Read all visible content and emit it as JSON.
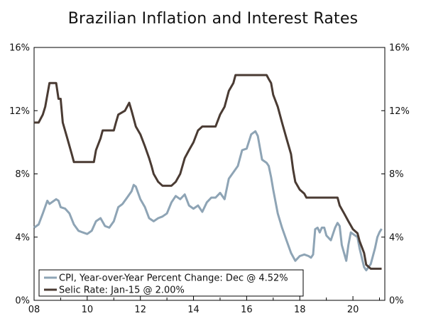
{
  "chart_data": {
    "type": "line",
    "title": "Brazilian Inflation and Interest Rates",
    "xlabel": "",
    "ylabel": "",
    "xlim": [
      2008,
      2021.2
    ],
    "ylim": [
      0,
      16
    ],
    "x_ticks": [
      8,
      10,
      12,
      14,
      16,
      18,
      20
    ],
    "x_tick_labels": [
      "08",
      "10",
      "12",
      "14",
      "16",
      "18",
      "20"
    ],
    "y_ticks": [
      0,
      4,
      8,
      12,
      16
    ],
    "y_tick_labels": [
      "0%",
      "4%",
      "8%",
      "12%",
      "16%"
    ],
    "grid": false,
    "legend_position": "bottom-left",
    "series": [
      {
        "name": "CPI, Year-over-Year Percent Change: Dec @ 4.52%",
        "color": "#8ea4b5",
        "points": [
          [
            2008.0,
            4.6
          ],
          [
            2008.17,
            4.8
          ],
          [
            2008.33,
            5.5
          ],
          [
            2008.5,
            6.3
          ],
          [
            2008.58,
            6.1
          ],
          [
            2008.75,
            6.3
          ],
          [
            2008.83,
            6.4
          ],
          [
            2008.92,
            6.3
          ],
          [
            2009.0,
            5.9
          ],
          [
            2009.17,
            5.8
          ],
          [
            2009.33,
            5.5
          ],
          [
            2009.5,
            4.8
          ],
          [
            2009.67,
            4.4
          ],
          [
            2009.83,
            4.3
          ],
          [
            2010.0,
            4.2
          ],
          [
            2010.17,
            4.4
          ],
          [
            2010.33,
            5.0
          ],
          [
            2010.5,
            5.2
          ],
          [
            2010.67,
            4.7
          ],
          [
            2010.83,
            4.6
          ],
          [
            2011.0,
            5.0
          ],
          [
            2011.17,
            5.9
          ],
          [
            2011.33,
            6.1
          ],
          [
            2011.5,
            6.5
          ],
          [
            2011.67,
            6.9
          ],
          [
            2011.75,
            7.3
          ],
          [
            2011.83,
            7.2
          ],
          [
            2012.0,
            6.4
          ],
          [
            2012.17,
            5.9
          ],
          [
            2012.33,
            5.2
          ],
          [
            2012.5,
            5.0
          ],
          [
            2012.67,
            5.2
          ],
          [
            2012.83,
            5.3
          ],
          [
            2013.0,
            5.5
          ],
          [
            2013.17,
            6.2
          ],
          [
            2013.33,
            6.6
          ],
          [
            2013.5,
            6.4
          ],
          [
            2013.67,
            6.7
          ],
          [
            2013.83,
            6.0
          ],
          [
            2014.0,
            5.8
          ],
          [
            2014.17,
            6.0
          ],
          [
            2014.33,
            5.6
          ],
          [
            2014.5,
            6.2
          ],
          [
            2014.67,
            6.5
          ],
          [
            2014.83,
            6.5
          ],
          [
            2015.0,
            6.8
          ],
          [
            2015.17,
            6.4
          ],
          [
            2015.33,
            7.7
          ],
          [
            2015.5,
            8.1
          ],
          [
            2015.67,
            8.5
          ],
          [
            2015.83,
            9.5
          ],
          [
            2016.0,
            9.6
          ],
          [
            2016.17,
            10.5
          ],
          [
            2016.33,
            10.7
          ],
          [
            2016.42,
            10.4
          ],
          [
            2016.58,
            8.9
          ],
          [
            2016.75,
            8.7
          ],
          [
            2016.83,
            8.5
          ],
          [
            2016.92,
            7.8
          ],
          [
            2017.0,
            7.0
          ],
          [
            2017.17,
            5.5
          ],
          [
            2017.33,
            4.6
          ],
          [
            2017.5,
            3.8
          ],
          [
            2017.67,
            3.0
          ],
          [
            2017.83,
            2.5
          ],
          [
            2018.0,
            2.8
          ],
          [
            2018.17,
            2.9
          ],
          [
            2018.33,
            2.8
          ],
          [
            2018.42,
            2.7
          ],
          [
            2018.5,
            2.9
          ],
          [
            2018.58,
            4.5
          ],
          [
            2018.67,
            4.6
          ],
          [
            2018.75,
            4.3
          ],
          [
            2018.83,
            4.6
          ],
          [
            2018.92,
            4.6
          ],
          [
            2019.0,
            4.1
          ],
          [
            2019.17,
            3.8
          ],
          [
            2019.33,
            4.6
          ],
          [
            2019.42,
            4.9
          ],
          [
            2019.5,
            4.7
          ],
          [
            2019.58,
            3.5
          ],
          [
            2019.75,
            2.5
          ],
          [
            2019.83,
            3.5
          ],
          [
            2019.92,
            4.3
          ],
          [
            2020.0,
            4.2
          ],
          [
            2020.17,
            4.0
          ],
          [
            2020.25,
            3.3
          ],
          [
            2020.42,
            2.1
          ],
          [
            2020.5,
            1.9
          ],
          [
            2020.67,
            2.3
          ],
          [
            2020.83,
            3.3
          ],
          [
            2020.92,
            4.0
          ],
          [
            2021.0,
            4.31
          ],
          [
            2021.08,
            4.52
          ]
        ]
      },
      {
        "name": "Selic Rate: Jan-15 @ 2.00%",
        "color": "#4a3b33",
        "points": [
          [
            2008.0,
            11.25
          ],
          [
            2008.17,
            11.25
          ],
          [
            2008.33,
            11.75
          ],
          [
            2008.42,
            12.25
          ],
          [
            2008.5,
            13.0
          ],
          [
            2008.58,
            13.75
          ],
          [
            2008.83,
            13.75
          ],
          [
            2008.92,
            12.75
          ],
          [
            2009.0,
            12.75
          ],
          [
            2009.08,
            11.25
          ],
          [
            2009.25,
            10.25
          ],
          [
            2009.42,
            9.25
          ],
          [
            2009.5,
            8.75
          ],
          [
            2010.0,
            8.75
          ],
          [
            2010.25,
            8.75
          ],
          [
            2010.33,
            9.5
          ],
          [
            2010.5,
            10.25
          ],
          [
            2010.58,
            10.75
          ],
          [
            2010.83,
            10.75
          ],
          [
            2011.0,
            10.75
          ],
          [
            2011.08,
            11.25
          ],
          [
            2011.17,
            11.75
          ],
          [
            2011.42,
            12.0
          ],
          [
            2011.58,
            12.5
          ],
          [
            2011.67,
            12.0
          ],
          [
            2011.75,
            11.5
          ],
          [
            2011.83,
            11.0
          ],
          [
            2012.0,
            10.5
          ],
          [
            2012.17,
            9.75
          ],
          [
            2012.33,
            9.0
          ],
          [
            2012.42,
            8.5
          ],
          [
            2012.5,
            8.0
          ],
          [
            2012.67,
            7.5
          ],
          [
            2012.83,
            7.25
          ],
          [
            2013.17,
            7.25
          ],
          [
            2013.33,
            7.5
          ],
          [
            2013.5,
            8.0
          ],
          [
            2013.67,
            9.0
          ],
          [
            2013.83,
            9.5
          ],
          [
            2014.0,
            10.0
          ],
          [
            2014.17,
            10.75
          ],
          [
            2014.33,
            11.0
          ],
          [
            2014.83,
            11.0
          ],
          [
            2015.0,
            11.75
          ],
          [
            2015.17,
            12.25
          ],
          [
            2015.33,
            13.25
          ],
          [
            2015.5,
            13.75
          ],
          [
            2015.58,
            14.25
          ],
          [
            2016.75,
            14.25
          ],
          [
            2016.83,
            14.0
          ],
          [
            2016.92,
            13.75
          ],
          [
            2017.0,
            13.0
          ],
          [
            2017.17,
            12.25
          ],
          [
            2017.33,
            11.25
          ],
          [
            2017.5,
            10.25
          ],
          [
            2017.67,
            9.25
          ],
          [
            2017.75,
            8.25
          ],
          [
            2017.83,
            7.5
          ],
          [
            2018.0,
            7.0
          ],
          [
            2018.17,
            6.75
          ],
          [
            2018.25,
            6.5
          ],
          [
            2019.42,
            6.5
          ],
          [
            2019.5,
            6.0
          ],
          [
            2019.67,
            5.5
          ],
          [
            2019.83,
            5.0
          ],
          [
            2020.0,
            4.5
          ],
          [
            2020.17,
            4.25
          ],
          [
            2020.25,
            3.75
          ],
          [
            2020.42,
            3.0
          ],
          [
            2020.5,
            2.25
          ],
          [
            2020.67,
            2.0
          ],
          [
            2021.08,
            2.0
          ]
        ]
      }
    ]
  }
}
